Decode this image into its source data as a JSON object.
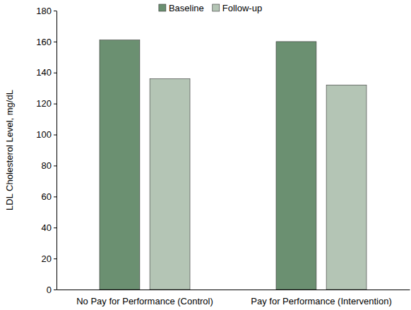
{
  "chart_data": {
    "type": "bar",
    "categories": [
      "No Pay for Performance (Control)",
      "Pay for Performance (Intervention)"
    ],
    "series": [
      {
        "name": "Baseline",
        "color": "#6b9071",
        "values": [
          161,
          160
        ]
      },
      {
        "name": "Follow-up",
        "color": "#b4c5b5",
        "values": [
          136,
          132
        ]
      }
    ],
    "y_label": "LDL Cholesterol Level, mg/dL",
    "ylim": [
      0,
      180
    ],
    "yticks": [
      0,
      20,
      40,
      60,
      80,
      100,
      120,
      140,
      160,
      180
    ],
    "legend": "top"
  }
}
